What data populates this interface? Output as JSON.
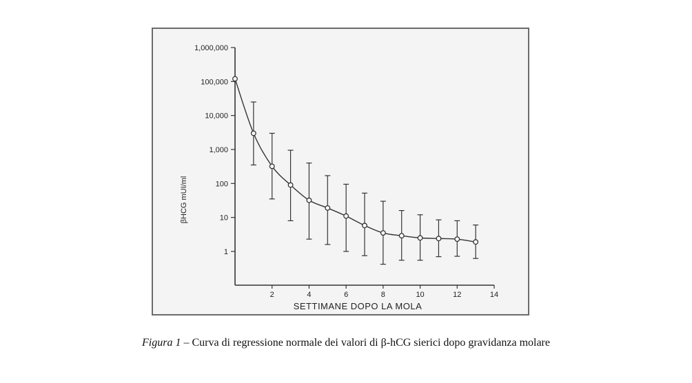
{
  "caption": {
    "label": "Figura 1",
    "text": " – Curva di regressione normale dei valori di β-hCG sierici dopo gravidanza molare"
  },
  "chart_data": {
    "type": "line",
    "title": "",
    "xlabel": "SETTIMANE DOPO LA MOLA",
    "ylabel": "βHCG mUI/ml",
    "x_scale": "linear",
    "y_scale": "log",
    "xlim": [
      0,
      14
    ],
    "ylim": [
      1,
      1000000
    ],
    "x_ticks": [
      2,
      4,
      6,
      8,
      10,
      12,
      14
    ],
    "x_tick_labels": [
      "2",
      "4",
      "6",
      "8",
      "10",
      "12",
      "14"
    ],
    "y_ticks": [
      1,
      10,
      100,
      1000,
      10000,
      100000,
      1000000
    ],
    "y_tick_labels": [
      "1",
      "10",
      "100",
      "1,000",
      "10,000",
      "100,000",
      "1,000,000"
    ],
    "grid": false,
    "series": [
      {
        "x": [
          0,
          1,
          2,
          3,
          4,
          5,
          6,
          7,
          8,
          9,
          10,
          11,
          12,
          13
        ],
        "y": [
          120000,
          3000,
          320,
          90,
          32,
          19,
          11,
          5.8,
          3.5,
          2.9,
          2.5,
          2.4,
          2.3,
          1.9
        ],
        "err_low": [
          120000,
          350,
          35,
          8,
          2.3,
          1.6,
          1.0,
          0.75,
          0.42,
          0.55,
          0.55,
          0.7,
          0.72,
          0.62
        ],
        "err_high": [
          120000,
          25000,
          3000,
          950,
          400,
          170,
          95,
          52,
          30,
          16,
          12,
          8.5,
          8,
          6
        ]
      }
    ]
  }
}
